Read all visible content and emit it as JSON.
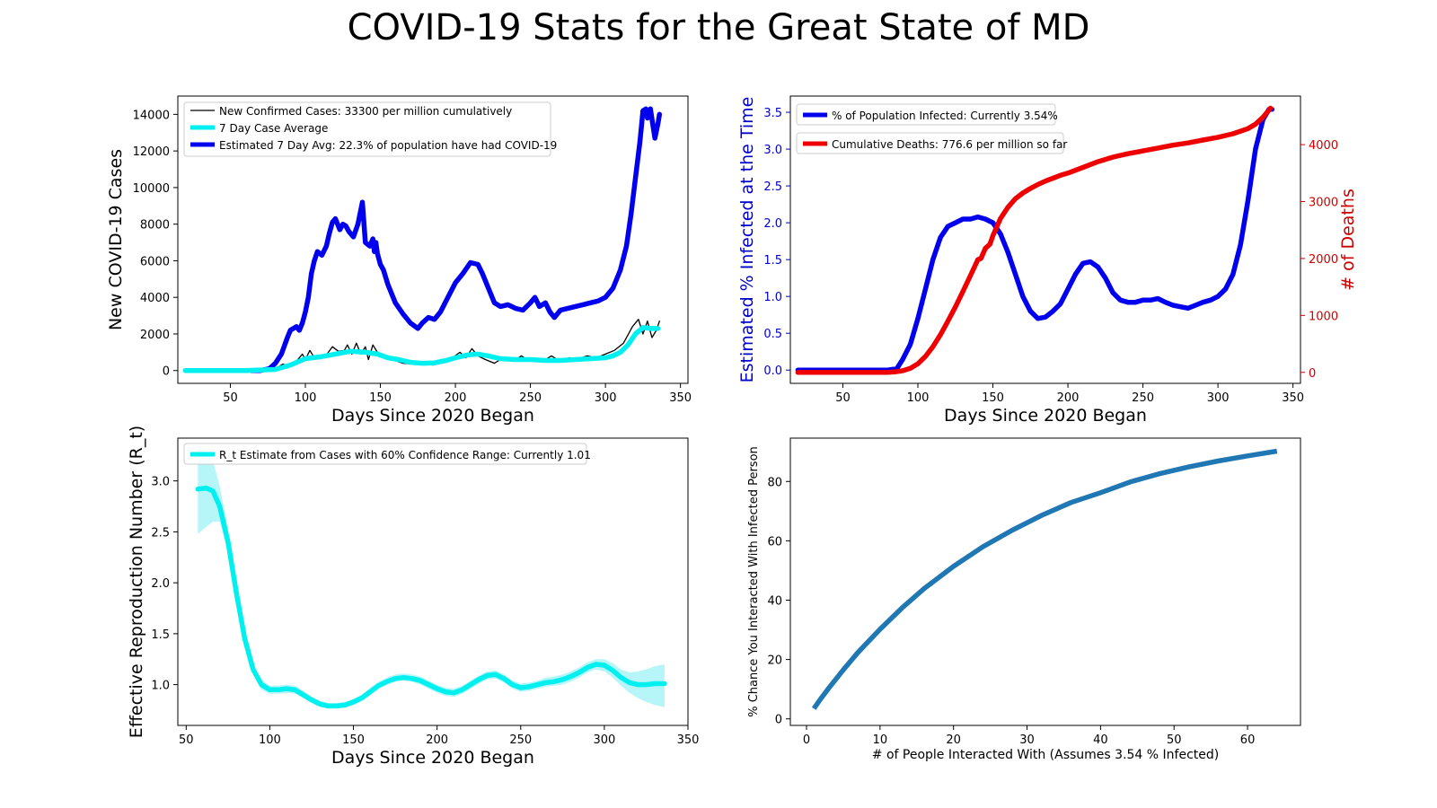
{
  "title": "COVID-19 Stats for the Great State of MD",
  "colors": {
    "blue": "#0000ee",
    "cyan": "#00f0f0",
    "cyan_band": "#a9f3f7",
    "red": "#ee0000",
    "steel": "#1f77b4",
    "axis_blue": "#0000cc",
    "axis_red": "#cc0000"
  },
  "chart_data": [
    {
      "type": "line",
      "xlabel": "Days Since 2020 Began",
      "ylabel": "New COVID-19 Cases",
      "xlim": [
        15,
        355
      ],
      "ylim": [
        -700,
        15000
      ],
      "xticks": [
        50,
        100,
        150,
        200,
        250,
        300,
        350
      ],
      "yticks": [
        0,
        2000,
        4000,
        6000,
        8000,
        10000,
        12000,
        14000
      ],
      "legend_position": "upper-left",
      "series": [
        {
          "name": "New Confirmed Cases: 33300 per million cumulatively",
          "color": "#000000",
          "style": "thin",
          "x": [
            20,
            60,
            80,
            85,
            90,
            95,
            98,
            100,
            103,
            106,
            110,
            114,
            118,
            122,
            126,
            128,
            131,
            134,
            137,
            140,
            142,
            145,
            148,
            152,
            158,
            165,
            172,
            178,
            185,
            192,
            198,
            203,
            207,
            211,
            215,
            220,
            226,
            232,
            238,
            244,
            248,
            252,
            258,
            264,
            270,
            276,
            282,
            288,
            294,
            300,
            306,
            312,
            318,
            322,
            325,
            328,
            331,
            334,
            336
          ],
          "y": [
            0,
            0,
            100,
            350,
            250,
            600,
            900,
            600,
            1100,
            700,
            800,
            850,
            1300,
            1050,
            1100,
            1400,
            900,
            1500,
            900,
            1300,
            600,
            1400,
            1000,
            800,
            600,
            400,
            350,
            450,
            300,
            600,
            700,
            1000,
            700,
            1200,
            800,
            600,
            400,
            700,
            500,
            800,
            600,
            700,
            500,
            800,
            500,
            700,
            650,
            800,
            700,
            900,
            1100,
            1500,
            2400,
            2800,
            2000,
            2700,
            1800,
            2200,
            2700
          ]
        },
        {
          "name": "7 Day Case Average",
          "color": "#00f0f0",
          "style": "thick",
          "x": [
            20,
            60,
            80,
            90,
            100,
            110,
            120,
            130,
            140,
            148,
            155,
            162,
            170,
            178,
            186,
            194,
            200,
            208,
            215,
            222,
            230,
            240,
            250,
            260,
            270,
            280,
            290,
            300,
            305,
            310,
            315,
            320,
            325,
            330,
            335
          ],
          "y": [
            0,
            0,
            60,
            300,
            650,
            750,
            900,
            1050,
            1000,
            900,
            700,
            600,
            450,
            400,
            420,
            550,
            700,
            850,
            900,
            800,
            650,
            600,
            600,
            550,
            550,
            600,
            650,
            700,
            800,
            1000,
            1400,
            2000,
            2350,
            2300,
            2300
          ]
        },
        {
          "name": "Estimated 7 Day Avg: 22.3% of population have had COVID-19",
          "color": "#0000ee",
          "style": "thick",
          "x": [
            64,
            70,
            76,
            80,
            84,
            88,
            90,
            94,
            96,
            98,
            100,
            102,
            104,
            106,
            108,
            111,
            114,
            116,
            118,
            120,
            123,
            125,
            127,
            129,
            132,
            135,
            138,
            140,
            143,
            145,
            146,
            147,
            148,
            150,
            152,
            155,
            160,
            165,
            170,
            175,
            178,
            182,
            186,
            190,
            195,
            200,
            205,
            210,
            215,
            218,
            222,
            226,
            230,
            235,
            240,
            245,
            250,
            253,
            256,
            260,
            263,
            266,
            270,
            275,
            280,
            285,
            290,
            295,
            300,
            305,
            310,
            314,
            317,
            320,
            323,
            325,
            327,
            328,
            330,
            332,
            333,
            335,
            336
          ],
          "y": [
            0,
            0,
            100,
            400,
            900,
            1800,
            2200,
            2400,
            2200,
            2600,
            3200,
            4000,
            5300,
            6000,
            6500,
            6300,
            6800,
            7500,
            8100,
            8300,
            7700,
            8000,
            7900,
            7600,
            7300,
            8000,
            9200,
            7000,
            6800,
            7200,
            6500,
            7000,
            6400,
            5800,
            5500,
            4700,
            3700,
            3100,
            2600,
            2300,
            2600,
            2900,
            2800,
            3200,
            4000,
            4800,
            5300,
            5900,
            5800,
            5300,
            4500,
            3700,
            3500,
            3600,
            3400,
            3300,
            3700,
            4000,
            3500,
            3700,
            3200,
            2900,
            3300,
            3400,
            3500,
            3600,
            3700,
            3800,
            4000,
            4500,
            5500,
            6800,
            8500,
            10500,
            12500,
            14200,
            14300,
            13800,
            14300,
            13200,
            12700,
            13500,
            14000
          ]
        }
      ]
    },
    {
      "type": "line",
      "xlabel": "Days Since 2020 Began",
      "ylabel": "Estimated % Infected at the Time",
      "ylabel_right": "# of Deaths",
      "xlim": [
        15,
        355
      ],
      "ylim": [
        -0.18,
        3.72
      ],
      "ylim_right": [
        -193,
        4853
      ],
      "xticks": [
        50,
        100,
        150,
        200,
        250,
        300,
        350
      ],
      "yticks": [
        "0.0",
        "0.5",
        "1.0",
        "1.5",
        "2.0",
        "2.5",
        "3.0",
        "3.5"
      ],
      "yticks_right": [
        0,
        1000,
        2000,
        3000,
        4000
      ],
      "legend_position": "upper-left",
      "series": [
        {
          "name": "% of Population Infected: Currently 3.54%",
          "color": "#0000ee",
          "axis": "left",
          "x": [
            20,
            60,
            80,
            86,
            90,
            95,
            100,
            105,
            110,
            115,
            120,
            125,
            130,
            135,
            140,
            145,
            150,
            155,
            160,
            165,
            170,
            175,
            180,
            185,
            190,
            195,
            200,
            205,
            210,
            215,
            220,
            225,
            230,
            235,
            240,
            245,
            250,
            255,
            260,
            265,
            270,
            275,
            280,
            285,
            290,
            295,
            300,
            305,
            310,
            315,
            320,
            325,
            330,
            334,
            336
          ],
          "y": [
            0,
            0,
            0,
            0.02,
            0.15,
            0.35,
            0.7,
            1.1,
            1.5,
            1.8,
            1.95,
            2.0,
            2.05,
            2.05,
            2.08,
            2.05,
            2.0,
            1.85,
            1.6,
            1.3,
            1.0,
            0.8,
            0.7,
            0.72,
            0.8,
            0.9,
            1.1,
            1.3,
            1.45,
            1.47,
            1.4,
            1.25,
            1.05,
            0.95,
            0.92,
            0.92,
            0.95,
            0.95,
            0.97,
            0.92,
            0.88,
            0.86,
            0.84,
            0.88,
            0.92,
            0.95,
            1.0,
            1.1,
            1.3,
            1.7,
            2.3,
            3.0,
            3.4,
            3.54,
            3.54
          ]
        },
        {
          "name": "Cumulative Deaths: 776.6 per million so far",
          "color": "#ee0000",
          "axis": "right",
          "x": [
            20,
            60,
            80,
            85,
            90,
            95,
            100,
            105,
            110,
            115,
            120,
            125,
            130,
            135,
            140,
            142,
            145,
            148,
            150,
            155,
            160,
            165,
            170,
            175,
            180,
            185,
            190,
            195,
            200,
            210,
            220,
            230,
            240,
            250,
            260,
            270,
            280,
            290,
            300,
            310,
            320,
            325,
            330,
            335
          ],
          "y": [
            0,
            0,
            0,
            10,
            30,
            70,
            150,
            280,
            450,
            660,
            900,
            1150,
            1420,
            1700,
            1980,
            2000,
            2180,
            2250,
            2400,
            2700,
            2900,
            3050,
            3150,
            3230,
            3300,
            3360,
            3410,
            3460,
            3500,
            3600,
            3700,
            3780,
            3840,
            3890,
            3940,
            3990,
            4030,
            4080,
            4130,
            4190,
            4280,
            4360,
            4480,
            4640
          ]
        }
      ]
    },
    {
      "type": "line",
      "xlabel": "Days Since 2020 Began",
      "ylabel": "Effective Reproduction Number (R_t)",
      "xlim": [
        45,
        350
      ],
      "ylim": [
        0.6,
        3.42
      ],
      "xticks": [
        50,
        100,
        150,
        200,
        250,
        300,
        350
      ],
      "yticks": [
        "1.0",
        "1.5",
        "2.0",
        "2.5",
        "3.0"
      ],
      "legend_position": "upper-left",
      "series": [
        {
          "name": "R_t Estimate from Cases with 60% Confidence Range: Currently 1.01",
          "color": "#00f0f0",
          "x": [
            57,
            62,
            66,
            70,
            75,
            80,
            85,
            90,
            95,
            100,
            105,
            110,
            115,
            120,
            125,
            130,
            135,
            140,
            145,
            150,
            155,
            160,
            165,
            170,
            175,
            180,
            185,
            190,
            195,
            200,
            205,
            210,
            215,
            220,
            225,
            230,
            235,
            240,
            245,
            250,
            255,
            260,
            265,
            270,
            275,
            280,
            285,
            290,
            295,
            300,
            305,
            310,
            315,
            320,
            325,
            330,
            336
          ],
          "y": [
            2.92,
            2.93,
            2.9,
            2.75,
            2.4,
            1.9,
            1.45,
            1.15,
            1.0,
            0.95,
            0.95,
            0.96,
            0.95,
            0.9,
            0.85,
            0.81,
            0.79,
            0.79,
            0.8,
            0.83,
            0.87,
            0.93,
            0.99,
            1.03,
            1.06,
            1.07,
            1.06,
            1.04,
            1.0,
            0.96,
            0.93,
            0.92,
            0.95,
            1.0,
            1.05,
            1.09,
            1.1,
            1.06,
            1.0,
            0.97,
            0.98,
            1.0,
            1.02,
            1.03,
            1.05,
            1.08,
            1.12,
            1.17,
            1.2,
            1.19,
            1.14,
            1.07,
            1.02,
            1.0,
            1.0,
            1.01,
            1.01
          ],
          "lower": [
            2.48,
            2.55,
            2.6,
            2.6,
            2.3,
            1.85,
            1.4,
            1.1,
            0.95,
            0.91,
            0.91,
            0.92,
            0.91,
            0.87,
            0.82,
            0.78,
            0.77,
            0.77,
            0.78,
            0.8,
            0.84,
            0.9,
            0.96,
            1.0,
            1.03,
            1.04,
            1.03,
            1.0,
            0.96,
            0.92,
            0.89,
            0.88,
            0.91,
            0.96,
            1.01,
            1.05,
            1.06,
            1.02,
            0.96,
            0.93,
            0.94,
            0.96,
            0.98,
            0.99,
            1.0,
            1.03,
            1.07,
            1.12,
            1.15,
            1.13,
            1.07,
            0.99,
            0.92,
            0.87,
            0.83,
            0.8,
            0.78
          ],
          "upper": [
            3.35,
            3.3,
            3.2,
            2.95,
            2.52,
            1.97,
            1.5,
            1.2,
            1.05,
            0.99,
            0.99,
            1.0,
            0.99,
            0.94,
            0.88,
            0.84,
            0.82,
            0.82,
            0.83,
            0.86,
            0.9,
            0.97,
            1.03,
            1.07,
            1.1,
            1.11,
            1.1,
            1.08,
            1.04,
            1.0,
            0.97,
            0.96,
            0.99,
            1.04,
            1.09,
            1.13,
            1.14,
            1.1,
            1.04,
            1.01,
            1.02,
            1.04,
            1.07,
            1.08,
            1.1,
            1.13,
            1.17,
            1.22,
            1.25,
            1.25,
            1.21,
            1.15,
            1.12,
            1.13,
            1.15,
            1.18,
            1.2
          ]
        }
      ]
    },
    {
      "type": "line",
      "xlabel": "# of People Interacted With (Assumes 3.54 % Infected)",
      "ylabel": "% Chance You Interacted With Infected Person",
      "xlim": [
        -2.2,
        67.2
      ],
      "ylim": [
        -2.2,
        94.6
      ],
      "xticks": [
        0,
        10,
        20,
        30,
        40,
        50,
        60
      ],
      "yticks": [
        0,
        20,
        40,
        60,
        80
      ],
      "series": [
        {
          "color": "#1f77b4",
          "x": [
            1,
            2,
            3,
            5,
            7,
            10,
            13,
            16,
            20,
            24,
            28,
            32,
            36,
            40,
            44,
            48,
            52,
            56,
            60,
            64
          ],
          "y": [
            3.5,
            7.0,
            10.3,
            16.5,
            22.4,
            30.2,
            37.4,
            43.9,
            51.4,
            58.0,
            63.6,
            68.6,
            72.9,
            76.2,
            79.8,
            82.6,
            84.9,
            86.9,
            88.6,
            90.2
          ]
        }
      ]
    }
  ]
}
